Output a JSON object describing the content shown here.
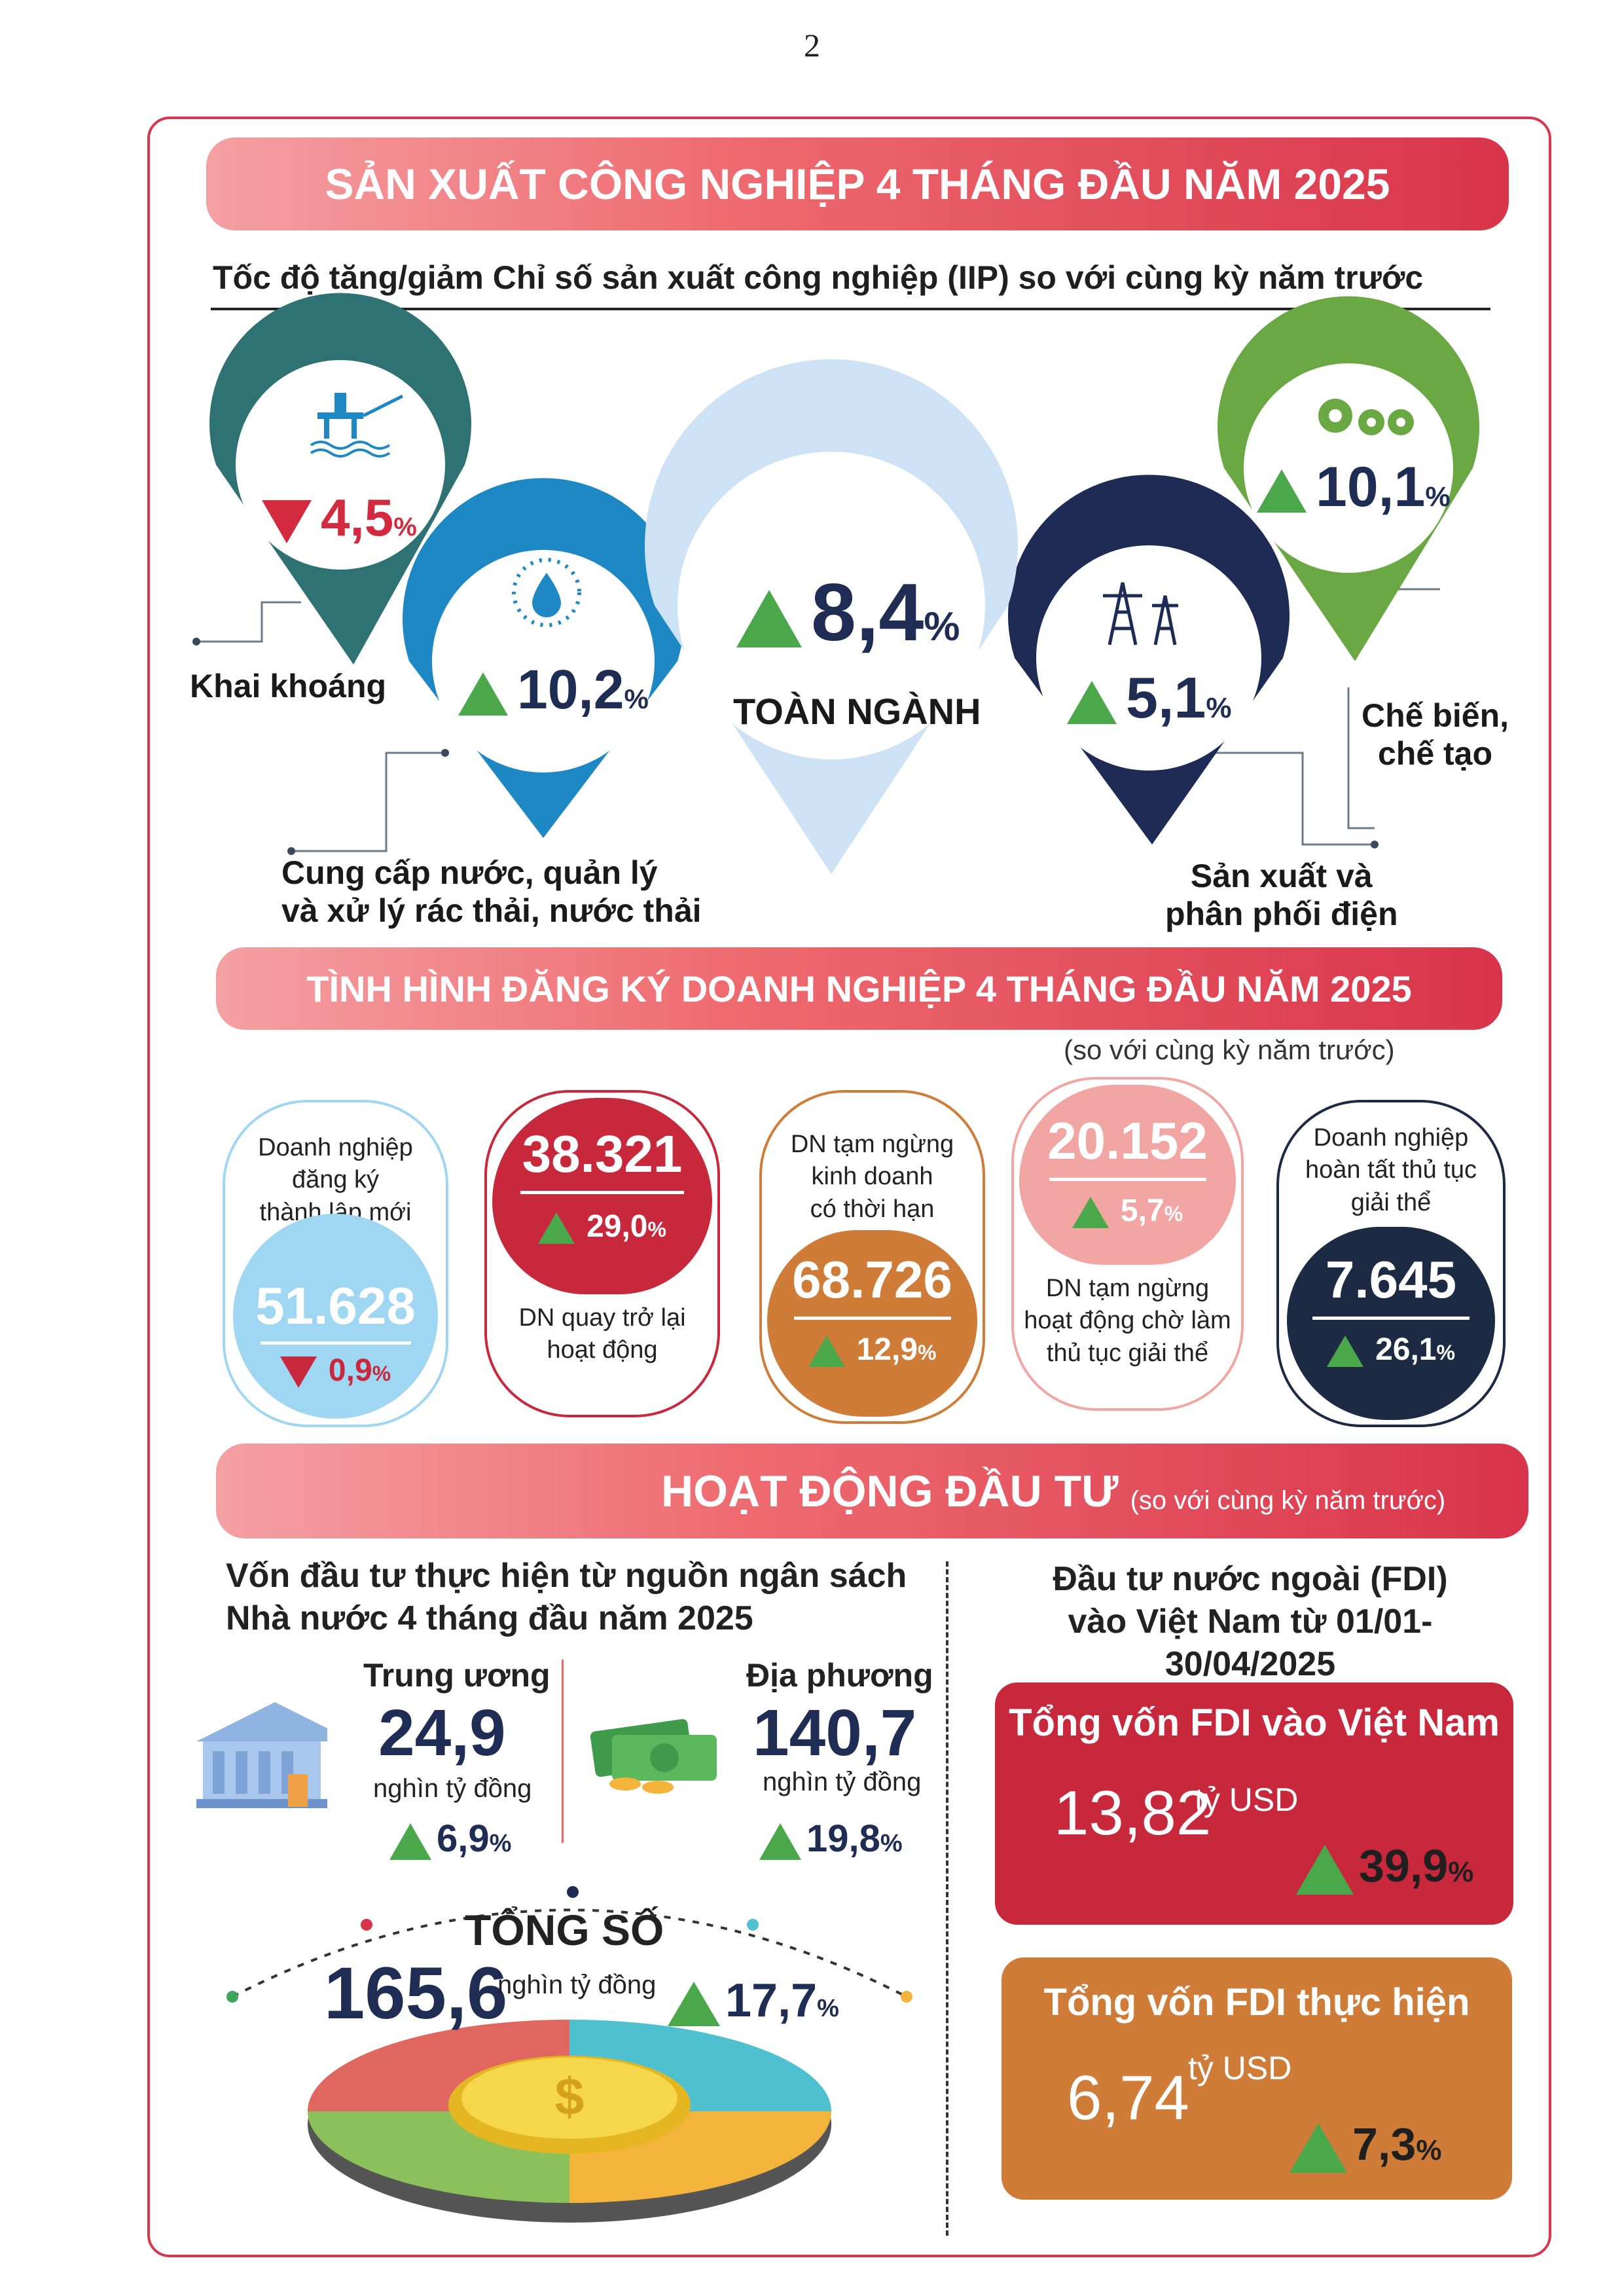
{
  "page_number": "2",
  "iip": {
    "title": "SẢN XUẤT CÔNG NGHIỆP 4 THÁNG ĐẦU NĂM 2025",
    "subtitle": "Tốc độ tăng/giảm Chỉ số sản xuất công nghiệp (IIP) so với cùng kỳ năm trước",
    "mining": {
      "value": "4,5",
      "pct": "%",
      "direction": "down",
      "label": "Khai khoáng",
      "color": "#2f7273",
      "icon": "oil-rig-icon"
    },
    "water": {
      "value": "10,2",
      "pct": "%",
      "direction": "up",
      "label_line1": "Cung cấp nước, quản lý",
      "label_line2": "và xử lý rác thải, nước thải",
      "color": "#1e88c4",
      "icon": "water-drop-icon"
    },
    "total": {
      "value": "8,4",
      "pct": "%",
      "direction": "up",
      "label": "TOÀN NGÀNH",
      "color": "#cde3f5"
    },
    "electricity": {
      "value": "5,1",
      "pct": "%",
      "direction": "up",
      "label_line1": "Sản xuất và",
      "label_line2": "phân phối điện",
      "color": "#1e2b55",
      "icon": "power-tower-icon"
    },
    "manufacturing": {
      "value": "10,1",
      "pct": "%",
      "direction": "up",
      "label_line1": "Chế biến,",
      "label_line2": "chế tạo",
      "color": "#6aa843",
      "icon": "gears-icon"
    }
  },
  "business": {
    "title": "TÌNH HÌNH ĐĂNG KÝ DOANH NGHIỆP 4 THÁNG ĐẦU NĂM 2025",
    "note": "(so với cùng kỳ năm trước)",
    "cards": [
      {
        "label": [
          "Doanh nghiệp",
          "đăng ký",
          "thành lập mới"
        ],
        "value": "51.628",
        "change": "0,9",
        "pct": "%",
        "direction": "down",
        "color": "#9fd6f2"
      },
      {
        "label": [
          "DN quay trở lại",
          "hoạt động"
        ],
        "value": "38.321",
        "change": "29,0",
        "pct": "%",
        "direction": "up",
        "color": "#c8283c"
      },
      {
        "label": [
          "DN tạm ngừng",
          "kinh doanh",
          "có thời hạn"
        ],
        "value": "68.726",
        "change": "12,9",
        "pct": "%",
        "direction": "up",
        "color": "#cf7c38"
      },
      {
        "label": [
          "DN tạm ngừng",
          "hoạt động chờ làm",
          "thủ tục giải thể"
        ],
        "value": "20.152",
        "change": "5,7",
        "pct": "%",
        "direction": "up",
        "color": "#f2a6a4"
      },
      {
        "label": [
          "Doanh nghiệp",
          "hoàn tất thủ tục",
          "giải thể"
        ],
        "value": "7.645",
        "change": "26,1",
        "pct": "%",
        "direction": "up",
        "color": "#1d2a44"
      }
    ]
  },
  "investment": {
    "title": "HOẠT ĐỘNG ĐẦU TƯ",
    "note": "(so với cùng kỳ năm trước)",
    "budget_heading": [
      "Vốn đầu tư thực hiện từ nguồn ngân sách",
      "Nhà nước 4 tháng đầu năm 2025"
    ],
    "central": {
      "label": "Trung ương",
      "value": "24,9",
      "unit": "nghìn tỷ đồng",
      "change": "6,9",
      "pct": "%"
    },
    "local": {
      "label": "Địa phương",
      "value": "140,7",
      "unit": "nghìn tỷ đồng",
      "change": "19,8",
      "pct": "%"
    },
    "total": {
      "label": "TỔNG SỐ",
      "value": "165,6",
      "unit": "nghìn tỷ đồng",
      "change": "17,7",
      "pct": "%"
    },
    "fdi_heading": [
      "Đầu tư nước ngoài (FDI)",
      "vào Việt Nam từ 01/01-30/04/2025"
    ],
    "fdi_registered": {
      "title": "Tổng vốn FDI vào Việt Nam",
      "value": "13,82",
      "unit": "tỷ USD",
      "change": "39,9",
      "pct": "%",
      "color": "#c8283c"
    },
    "fdi_disbursed": {
      "title": "Tổng vốn FDI thực hiện",
      "value": "6,74",
      "unit": "tỷ USD",
      "change": "7,3",
      "pct": "%",
      "color": "#cf7c38"
    }
  }
}
